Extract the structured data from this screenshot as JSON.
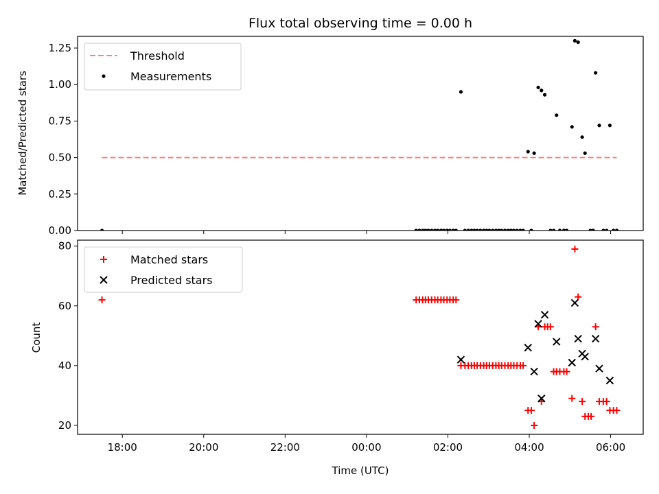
{
  "chart_data": [
    {
      "type": "scatter",
      "title": "Flux total observing time = 0.00 h",
      "xlabel": "",
      "ylabel": "Matched/Predicted stars",
      "xlim": [
        16.9,
        30.8
      ],
      "ylim": [
        0,
        1.33
      ],
      "yticks": [
        0,
        0.25,
        0.5,
        0.75,
        1.0,
        1.25
      ],
      "ytick_labels": [
        "0.00",
        "0.25",
        "0.50",
        "0.75",
        "1.00",
        "1.25"
      ],
      "legend": {
        "position": "top-left",
        "entries": [
          "Threshold",
          "Measurements"
        ]
      },
      "threshold": {
        "name": "Threshold",
        "value": 0.5,
        "x_start": 17.5,
        "x_end": 30.15,
        "color": "#ff7f7f"
      },
      "series": [
        {
          "name": "Measurements",
          "color": "#000000",
          "marker": "dot",
          "points": [
            [
              17.5,
              0.0
            ],
            [
              25.22,
              0.0
            ],
            [
              25.3,
              0.0
            ],
            [
              25.38,
              0.0
            ],
            [
              25.45,
              0.0
            ],
            [
              25.52,
              0.0
            ],
            [
              25.6,
              0.0
            ],
            [
              25.68,
              0.0
            ],
            [
              25.75,
              0.0
            ],
            [
              25.83,
              0.0
            ],
            [
              25.9,
              0.0
            ],
            [
              25.98,
              0.0
            ],
            [
              26.05,
              0.0
            ],
            [
              26.13,
              0.0
            ],
            [
              26.2,
              0.0
            ],
            [
              26.32,
              0.95
            ],
            [
              26.42,
              0.0
            ],
            [
              26.5,
              0.0
            ],
            [
              26.58,
              0.0
            ],
            [
              26.65,
              0.0
            ],
            [
              26.72,
              0.0
            ],
            [
              26.8,
              0.0
            ],
            [
              26.88,
              0.0
            ],
            [
              26.95,
              0.0
            ],
            [
              27.02,
              0.0
            ],
            [
              27.1,
              0.0
            ],
            [
              27.18,
              0.0
            ],
            [
              27.25,
              0.0
            ],
            [
              27.32,
              0.0
            ],
            [
              27.4,
              0.0
            ],
            [
              27.48,
              0.0
            ],
            [
              27.55,
              0.0
            ],
            [
              27.62,
              0.0
            ],
            [
              27.7,
              0.0
            ],
            [
              27.78,
              0.0
            ],
            [
              27.85,
              0.0
            ],
            [
              27.97,
              0.54
            ],
            [
              28.05,
              0.0
            ],
            [
              28.12,
              0.53
            ],
            [
              28.22,
              0.98
            ],
            [
              28.3,
              0.96
            ],
            [
              28.38,
              0.93
            ],
            [
              28.52,
              0.0
            ],
            [
              28.6,
              0.0
            ],
            [
              28.67,
              0.79
            ],
            [
              28.75,
              0.0
            ],
            [
              28.85,
              0.0
            ],
            [
              28.92,
              0.0
            ],
            [
              29.05,
              0.71
            ],
            [
              29.12,
              1.3
            ],
            [
              29.2,
              1.29
            ],
            [
              29.3,
              0.64
            ],
            [
              29.37,
              0.53
            ],
            [
              29.5,
              0.0
            ],
            [
              29.57,
              0.0
            ],
            [
              29.63,
              1.08
            ],
            [
              29.72,
              0.72
            ],
            [
              29.82,
              0.0
            ],
            [
              29.9,
              0.0
            ],
            [
              29.98,
              0.72
            ],
            [
              30.07,
              0.0
            ],
            [
              30.15,
              0.0
            ]
          ]
        }
      ]
    },
    {
      "type": "scatter",
      "title": "",
      "xlabel": "Time (UTC)",
      "ylabel": "Count",
      "xlim": [
        16.9,
        30.8
      ],
      "ylim": [
        17,
        82
      ],
      "yticks": [
        20,
        40,
        60,
        80
      ],
      "ytick_labels": [
        "20",
        "40",
        "60",
        "80"
      ],
      "xticks": [
        18,
        20,
        22,
        24,
        26,
        28,
        30
      ],
      "xtick_labels": [
        "18:00",
        "20:00",
        "22:00",
        "00:00",
        "02:00",
        "04:00",
        "06:00"
      ],
      "legend": {
        "position": "top-left",
        "entries": [
          "Matched stars",
          "Predicted stars"
        ]
      },
      "series": [
        {
          "name": "Matched stars",
          "color": "#ff0000",
          "marker": "plus",
          "points": [
            [
              17.5,
              62
            ],
            [
              25.22,
              62
            ],
            [
              25.3,
              62
            ],
            [
              25.38,
              62
            ],
            [
              25.45,
              62
            ],
            [
              25.52,
              62
            ],
            [
              25.6,
              62
            ],
            [
              25.68,
              62
            ],
            [
              25.75,
              62
            ],
            [
              25.83,
              62
            ],
            [
              25.9,
              62
            ],
            [
              25.98,
              62
            ],
            [
              26.05,
              62
            ],
            [
              26.13,
              62
            ],
            [
              26.2,
              62
            ],
            [
              26.32,
              40
            ],
            [
              26.42,
              40
            ],
            [
              26.5,
              40
            ],
            [
              26.58,
              40
            ],
            [
              26.65,
              40
            ],
            [
              26.72,
              40
            ],
            [
              26.8,
              40
            ],
            [
              26.88,
              40
            ],
            [
              26.95,
              40
            ],
            [
              27.02,
              40
            ],
            [
              27.1,
              40
            ],
            [
              27.18,
              40
            ],
            [
              27.25,
              40
            ],
            [
              27.32,
              40
            ],
            [
              27.4,
              40
            ],
            [
              27.48,
              40
            ],
            [
              27.55,
              40
            ],
            [
              27.62,
              40
            ],
            [
              27.7,
              40
            ],
            [
              27.78,
              40
            ],
            [
              27.85,
              40
            ],
            [
              27.97,
              25
            ],
            [
              28.05,
              25
            ],
            [
              28.12,
              20
            ],
            [
              28.22,
              53
            ],
            [
              28.3,
              28
            ],
            [
              28.38,
              53
            ],
            [
              28.45,
              53
            ],
            [
              28.52,
              53
            ],
            [
              28.6,
              38
            ],
            [
              28.67,
              38
            ],
            [
              28.75,
              38
            ],
            [
              28.85,
              38
            ],
            [
              28.92,
              38
            ],
            [
              29.05,
              29
            ],
            [
              29.12,
              79
            ],
            [
              29.2,
              63
            ],
            [
              29.3,
              28
            ],
            [
              29.37,
              23
            ],
            [
              29.45,
              23
            ],
            [
              29.52,
              23
            ],
            [
              29.63,
              53
            ],
            [
              29.72,
              28
            ],
            [
              29.82,
              28
            ],
            [
              29.9,
              28
            ],
            [
              29.98,
              25
            ],
            [
              30.07,
              25
            ],
            [
              30.15,
              25
            ]
          ]
        },
        {
          "name": "Predicted stars",
          "color": "#000000",
          "marker": "x",
          "points": [
            [
              26.32,
              42
            ],
            [
              27.97,
              46
            ],
            [
              28.12,
              38
            ],
            [
              28.22,
              54
            ],
            [
              28.3,
              29
            ],
            [
              28.38,
              57
            ],
            [
              28.67,
              48
            ],
            [
              29.05,
              41
            ],
            [
              29.12,
              61
            ],
            [
              29.2,
              49
            ],
            [
              29.3,
              44
            ],
            [
              29.37,
              43
            ],
            [
              29.63,
              49
            ],
            [
              29.72,
              39
            ],
            [
              29.98,
              35
            ]
          ]
        }
      ]
    }
  ]
}
